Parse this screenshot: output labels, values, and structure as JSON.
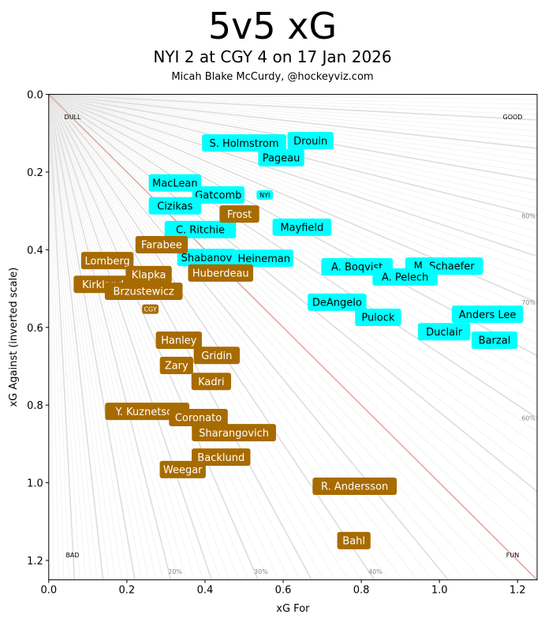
{
  "chart_data": {
    "type": "scatter",
    "title": "5v5 xG",
    "subtitle": "NYI 2 at CGY 4 on 17 Jan 2026",
    "credit": "Micah Blake McCurdy, @hockeyviz.com",
    "xlabel": "xG For",
    "ylabel": "xG Against (inverted scale)",
    "xlim": [
      0,
      1.25
    ],
    "ylim": [
      0,
      1.25
    ],
    "y_inverted": true,
    "xticks": [
      "0.0",
      "0.2",
      "0.4",
      "0.6",
      "0.8",
      "1.0",
      "1.2"
    ],
    "yticks": [
      "0.0",
      "0.2",
      "0.4",
      "0.6",
      "0.8",
      "1.0",
      "1.2"
    ],
    "corner_labels": {
      "top_left": "DULL",
      "top_right": "GOOD",
      "bottom_left": "BAD",
      "bottom_right": "FUN"
    },
    "percent_labels_bottom": [
      "20%",
      "30%",
      "40%"
    ],
    "percent_labels_right": [
      "80%",
      "70%",
      "60%"
    ],
    "colors": {
      "NYI": "#00ffff",
      "CGY": "#a86b00",
      "even_line": "#e0a8a0",
      "grid": "#dddddd"
    },
    "teams": [
      {
        "name": "NYI",
        "x": 0.553,
        "y": 0.259
      },
      {
        "name": "CGY",
        "x": 0.26,
        "y": 0.553
      }
    ],
    "series": [
      {
        "name": "NYI",
        "points": [
          {
            "label": "S. Holmstrom",
            "x": 0.5,
            "y": 0.125
          },
          {
            "label": "Drouin",
            "x": 0.67,
            "y": 0.119
          },
          {
            "label": "Pageau",
            "x": 0.595,
            "y": 0.163
          },
          {
            "label": "MacLean",
            "x": 0.323,
            "y": 0.228
          },
          {
            "label": "Gatcomb",
            "x": 0.434,
            "y": 0.259
          },
          {
            "label": "Cizikas",
            "x": 0.323,
            "y": 0.287
          },
          {
            "label": "C. Ritchie",
            "x": 0.388,
            "y": 0.348
          },
          {
            "label": "Mayfield",
            "x": 0.648,
            "y": 0.342
          },
          {
            "label": "Shabanov",
            "x": 0.404,
            "y": 0.42
          },
          {
            "label": "Heineman",
            "x": 0.551,
            "y": 0.422
          },
          {
            "label": "A. Boqvist",
            "x": 0.789,
            "y": 0.444
          },
          {
            "label": "M. Schaefer",
            "x": 1.012,
            "y": 0.442
          },
          {
            "label": "A. Pelech",
            "x": 0.912,
            "y": 0.47
          },
          {
            "label": "DeAngelo",
            "x": 0.738,
            "y": 0.535
          },
          {
            "label": "Pulock",
            "x": 0.843,
            "y": 0.574
          },
          {
            "label": "Anders Lee",
            "x": 1.123,
            "y": 0.566
          },
          {
            "label": "Duclair",
            "x": 1.012,
            "y": 0.611
          },
          {
            "label": "Barzal",
            "x": 1.141,
            "y": 0.633
          }
        ]
      },
      {
        "name": "CGY",
        "points": [
          {
            "label": "Frost",
            "x": 0.488,
            "y": 0.308
          },
          {
            "label": "Farabee",
            "x": 0.289,
            "y": 0.387
          },
          {
            "label": "Lomberg",
            "x": 0.15,
            "y": 0.428
          },
          {
            "label": "Huberdeau",
            "x": 0.44,
            "y": 0.46
          },
          {
            "label": "Klapka",
            "x": 0.256,
            "y": 0.464
          },
          {
            "label": "Kirkland",
            "x": 0.139,
            "y": 0.489
          },
          {
            "label": "Brzustewicz",
            "x": 0.243,
            "y": 0.507
          },
          {
            "label": "Hanley",
            "x": 0.333,
            "y": 0.633
          },
          {
            "label": "Gridin",
            "x": 0.43,
            "y": 0.672
          },
          {
            "label": "Zary",
            "x": 0.327,
            "y": 0.698
          },
          {
            "label": "Kadri",
            "x": 0.416,
            "y": 0.739
          },
          {
            "label": "Y. Kuznetsov",
            "x": 0.252,
            "y": 0.816
          },
          {
            "label": "Coronato",
            "x": 0.383,
            "y": 0.832
          },
          {
            "label": "Sharangovich",
            "x": 0.474,
            "y": 0.871
          },
          {
            "label": "Backlund",
            "x": 0.441,
            "y": 0.934
          },
          {
            "label": "Weegar",
            "x": 0.343,
            "y": 0.966
          },
          {
            "label": "R. Andersson",
            "x": 0.783,
            "y": 1.009
          },
          {
            "label": "Bahl",
            "x": 0.781,
            "y": 1.149
          }
        ]
      }
    ]
  }
}
